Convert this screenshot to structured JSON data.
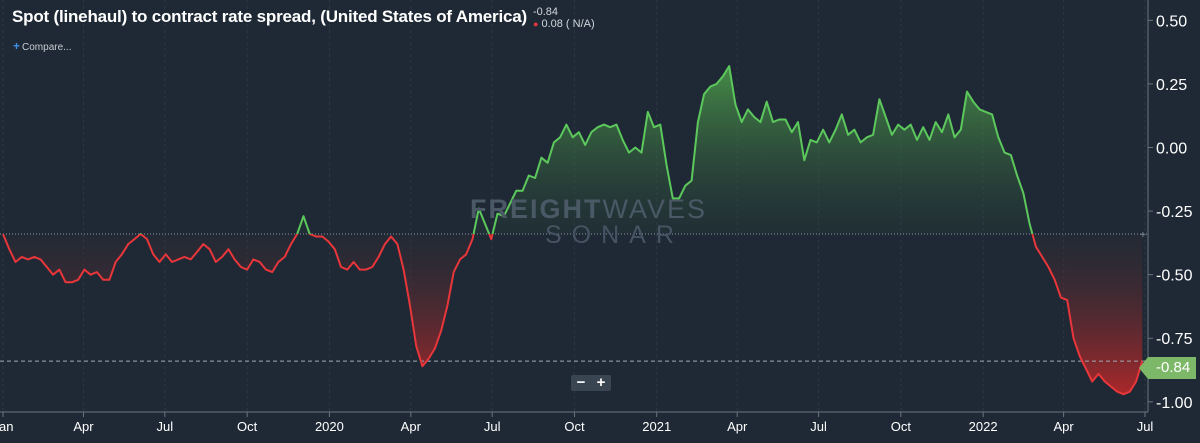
{
  "title": "Spot (linehaul) to contract rate spread, (United States of America)",
  "readout": {
    "current": "-0.84",
    "change": "0.08 ( N/A)",
    "change_marker": "●"
  },
  "compare": {
    "icon": "plus-icon",
    "label": "Compare..."
  },
  "watermark": {
    "line1_bold": "FREIGHT",
    "line1_light": "WAVES",
    "line2": "SONAR"
  },
  "zoom": {
    "minus": "−",
    "plus": "+"
  },
  "last_value_label": "-0.84",
  "colors": {
    "background": "#1f2935",
    "positive_line": "#5cc85c",
    "negative_line": "#e8363a",
    "positive_fill": "#4c9a4a",
    "negative_fill": "#c42828",
    "badge": "#7cb868"
  },
  "chart_data": {
    "type": "area",
    "title": "Spot (linehaul) to contract rate spread, (United States of America)",
    "baseline": -0.34,
    "last_value": -0.84,
    "ylim": [
      -1.04,
      0.58
    ],
    "yticks": [
      0.5,
      0.25,
      0.0,
      -0.25,
      -0.5,
      -0.75,
      -1.0
    ],
    "ytick_labels": [
      "0.50",
      "0.25",
      "0.00",
      "-0.25",
      "-0.50",
      "-0.75",
      "-1.00"
    ],
    "xlim": [
      "2019-01-01",
      "2022-07-01"
    ],
    "xticks": [
      {
        "date": "2019-01-01",
        "label": "Jan"
      },
      {
        "date": "2019-04-01",
        "label": "Apr"
      },
      {
        "date": "2019-07-01",
        "label": "Jul"
      },
      {
        "date": "2019-10-01",
        "label": "Oct"
      },
      {
        "date": "2020-01-01",
        "label": "2020"
      },
      {
        "date": "2020-04-01",
        "label": "Apr"
      },
      {
        "date": "2020-07-01",
        "label": "Jul"
      },
      {
        "date": "2020-10-01",
        "label": "Oct"
      },
      {
        "date": "2021-01-01",
        "label": "2021"
      },
      {
        "date": "2021-04-01",
        "label": "Apr"
      },
      {
        "date": "2021-07-01",
        "label": "Jul"
      },
      {
        "date": "2021-10-01",
        "label": "Oct"
      },
      {
        "date": "2022-01-01",
        "label": "2022"
      },
      {
        "date": "2022-04-01",
        "label": "Apr"
      },
      {
        "date": "2022-07-01",
        "label": "Jul"
      }
    ],
    "series": [
      {
        "points": [
          [
            "2019-01-01",
            -0.34
          ],
          [
            "2019-01-08",
            -0.4
          ],
          [
            "2019-01-15",
            -0.45
          ],
          [
            "2019-01-22",
            -0.43
          ],
          [
            "2019-01-29",
            -0.44
          ],
          [
            "2019-02-05",
            -0.43
          ],
          [
            "2019-02-12",
            -0.44
          ],
          [
            "2019-02-19",
            -0.47
          ],
          [
            "2019-02-26",
            -0.5
          ],
          [
            "2019-03-05",
            -0.48
          ],
          [
            "2019-03-12",
            -0.53
          ],
          [
            "2019-03-19",
            -0.53
          ],
          [
            "2019-03-26",
            -0.52
          ],
          [
            "2019-04-02",
            -0.48
          ],
          [
            "2019-04-09",
            -0.5
          ],
          [
            "2019-04-16",
            -0.49
          ],
          [
            "2019-04-23",
            -0.52
          ],
          [
            "2019-04-30",
            -0.52
          ],
          [
            "2019-05-07",
            -0.45
          ],
          [
            "2019-05-14",
            -0.42
          ],
          [
            "2019-05-21",
            -0.38
          ],
          [
            "2019-05-28",
            -0.36
          ],
          [
            "2019-06-04",
            -0.34
          ],
          [
            "2019-06-11",
            -0.36
          ],
          [
            "2019-06-18",
            -0.42
          ],
          [
            "2019-06-25",
            -0.45
          ],
          [
            "2019-07-02",
            -0.42
          ],
          [
            "2019-07-09",
            -0.45
          ],
          [
            "2019-07-16",
            -0.44
          ],
          [
            "2019-07-23",
            -0.43
          ],
          [
            "2019-07-30",
            -0.44
          ],
          [
            "2019-08-06",
            -0.41
          ],
          [
            "2019-08-13",
            -0.38
          ],
          [
            "2019-08-20",
            -0.4
          ],
          [
            "2019-08-27",
            -0.45
          ],
          [
            "2019-09-03",
            -0.43
          ],
          [
            "2019-09-10",
            -0.4
          ],
          [
            "2019-09-17",
            -0.44
          ],
          [
            "2019-09-24",
            -0.47
          ],
          [
            "2019-10-01",
            -0.48
          ],
          [
            "2019-10-08",
            -0.44
          ],
          [
            "2019-10-15",
            -0.45
          ],
          [
            "2019-10-22",
            -0.48
          ],
          [
            "2019-10-29",
            -0.49
          ],
          [
            "2019-11-05",
            -0.45
          ],
          [
            "2019-11-12",
            -0.43
          ],
          [
            "2019-11-19",
            -0.38
          ],
          [
            "2019-11-26",
            -0.34
          ],
          [
            "2019-12-03",
            -0.27
          ],
          [
            "2019-12-10",
            -0.34
          ],
          [
            "2019-12-17",
            -0.35
          ],
          [
            "2019-12-24",
            -0.35
          ],
          [
            "2019-12-31",
            -0.37
          ],
          [
            "2020-01-07",
            -0.4
          ],
          [
            "2020-01-14",
            -0.47
          ],
          [
            "2020-01-21",
            -0.48
          ],
          [
            "2020-01-28",
            -0.45
          ],
          [
            "2020-02-04",
            -0.48
          ],
          [
            "2020-02-11",
            -0.48
          ],
          [
            "2020-02-18",
            -0.47
          ],
          [
            "2020-02-25",
            -0.43
          ],
          [
            "2020-03-03",
            -0.38
          ],
          [
            "2020-03-10",
            -0.35
          ],
          [
            "2020-03-17",
            -0.38
          ],
          [
            "2020-03-24",
            -0.48
          ],
          [
            "2020-03-31",
            -0.62
          ],
          [
            "2020-04-07",
            -0.78
          ],
          [
            "2020-04-14",
            -0.86
          ],
          [
            "2020-04-21",
            -0.83
          ],
          [
            "2020-04-28",
            -0.79
          ],
          [
            "2020-05-05",
            -0.72
          ],
          [
            "2020-05-12",
            -0.62
          ],
          [
            "2020-05-19",
            -0.49
          ],
          [
            "2020-05-26",
            -0.44
          ],
          [
            "2020-06-02",
            -0.42
          ],
          [
            "2020-06-09",
            -0.36
          ],
          [
            "2020-06-16",
            -0.24
          ],
          [
            "2020-06-23",
            -0.3
          ],
          [
            "2020-06-30",
            -0.36
          ],
          [
            "2020-07-07",
            -0.26
          ],
          [
            "2020-07-14",
            -0.27
          ],
          [
            "2020-07-21",
            -0.22
          ],
          [
            "2020-07-28",
            -0.17
          ],
          [
            "2020-08-04",
            -0.17
          ],
          [
            "2020-08-11",
            -0.11
          ],
          [
            "2020-08-18",
            -0.12
          ],
          [
            "2020-08-25",
            -0.04
          ],
          [
            "2020-09-01",
            -0.06
          ],
          [
            "2020-09-08",
            0.02
          ],
          [
            "2020-09-15",
            0.04
          ],
          [
            "2020-09-22",
            0.09
          ],
          [
            "2020-09-29",
            0.04
          ],
          [
            "2020-10-06",
            0.06
          ],
          [
            "2020-10-13",
            0.01
          ],
          [
            "2020-10-20",
            0.06
          ],
          [
            "2020-10-27",
            0.08
          ],
          [
            "2020-11-03",
            0.09
          ],
          [
            "2020-11-10",
            0.08
          ],
          [
            "2020-11-17",
            0.09
          ],
          [
            "2020-11-24",
            0.03
          ],
          [
            "2020-12-01",
            -0.02
          ],
          [
            "2020-12-08",
            0.0
          ],
          [
            "2020-12-15",
            -0.02
          ],
          [
            "2020-12-22",
            0.14
          ],
          [
            "2020-12-29",
            0.08
          ],
          [
            "2021-01-05",
            0.09
          ],
          [
            "2021-01-12",
            -0.07
          ],
          [
            "2021-01-19",
            -0.2
          ],
          [
            "2021-01-26",
            -0.2
          ],
          [
            "2021-02-02",
            -0.15
          ],
          [
            "2021-02-09",
            -0.13
          ],
          [
            "2021-02-16",
            0.1
          ],
          [
            "2021-02-23",
            0.21
          ],
          [
            "2021-03-02",
            0.24
          ],
          [
            "2021-03-09",
            0.25
          ],
          [
            "2021-03-16",
            0.28
          ],
          [
            "2021-03-23",
            0.32
          ],
          [
            "2021-03-30",
            0.17
          ],
          [
            "2021-04-06",
            0.1
          ],
          [
            "2021-04-13",
            0.15
          ],
          [
            "2021-04-20",
            0.12
          ],
          [
            "2021-04-27",
            0.1
          ],
          [
            "2021-05-04",
            0.18
          ],
          [
            "2021-05-11",
            0.1
          ],
          [
            "2021-05-18",
            0.11
          ],
          [
            "2021-05-25",
            0.11
          ],
          [
            "2021-06-01",
            0.06
          ],
          [
            "2021-06-08",
            0.1
          ],
          [
            "2021-06-15",
            -0.05
          ],
          [
            "2021-06-22",
            0.03
          ],
          [
            "2021-06-29",
            0.02
          ],
          [
            "2021-07-06",
            0.07
          ],
          [
            "2021-07-13",
            0.02
          ],
          [
            "2021-07-20",
            0.07
          ],
          [
            "2021-07-27",
            0.13
          ],
          [
            "2021-08-03",
            0.05
          ],
          [
            "2021-08-10",
            0.07
          ],
          [
            "2021-08-17",
            0.02
          ],
          [
            "2021-08-24",
            0.04
          ],
          [
            "2021-08-31",
            0.05
          ],
          [
            "2021-09-07",
            0.19
          ],
          [
            "2021-09-14",
            0.12
          ],
          [
            "2021-09-21",
            0.05
          ],
          [
            "2021-09-28",
            0.09
          ],
          [
            "2021-10-05",
            0.07
          ],
          [
            "2021-10-12",
            0.09
          ],
          [
            "2021-10-19",
            0.03
          ],
          [
            "2021-10-26",
            0.08
          ],
          [
            "2021-11-02",
            0.03
          ],
          [
            "2021-11-09",
            0.1
          ],
          [
            "2021-11-16",
            0.06
          ],
          [
            "2021-11-23",
            0.13
          ],
          [
            "2021-11-30",
            0.04
          ],
          [
            "2021-12-07",
            0.07
          ],
          [
            "2021-12-14",
            0.22
          ],
          [
            "2021-12-21",
            0.18
          ],
          [
            "2021-12-28",
            0.15
          ],
          [
            "2022-01-04",
            0.14
          ],
          [
            "2022-01-11",
            0.13
          ],
          [
            "2022-01-18",
            0.04
          ],
          [
            "2022-01-25",
            -0.02
          ],
          [
            "2022-02-01",
            -0.03
          ],
          [
            "2022-02-08",
            -0.11
          ],
          [
            "2022-02-15",
            -0.18
          ],
          [
            "2022-02-22",
            -0.3
          ],
          [
            "2022-03-01",
            -0.39
          ],
          [
            "2022-03-08",
            -0.43
          ],
          [
            "2022-03-15",
            -0.47
          ],
          [
            "2022-03-22",
            -0.52
          ],
          [
            "2022-03-29",
            -0.59
          ],
          [
            "2022-04-05",
            -0.6
          ],
          [
            "2022-04-12",
            -0.75
          ],
          [
            "2022-04-19",
            -0.82
          ],
          [
            "2022-04-26",
            -0.87
          ],
          [
            "2022-05-03",
            -0.92
          ],
          [
            "2022-05-10",
            -0.89
          ],
          [
            "2022-05-17",
            -0.92
          ],
          [
            "2022-05-24",
            -0.94
          ],
          [
            "2022-05-31",
            -0.96
          ],
          [
            "2022-06-07",
            -0.97
          ],
          [
            "2022-06-14",
            -0.96
          ],
          [
            "2022-06-21",
            -0.92
          ],
          [
            "2022-06-28",
            -0.84
          ]
        ]
      }
    ]
  }
}
